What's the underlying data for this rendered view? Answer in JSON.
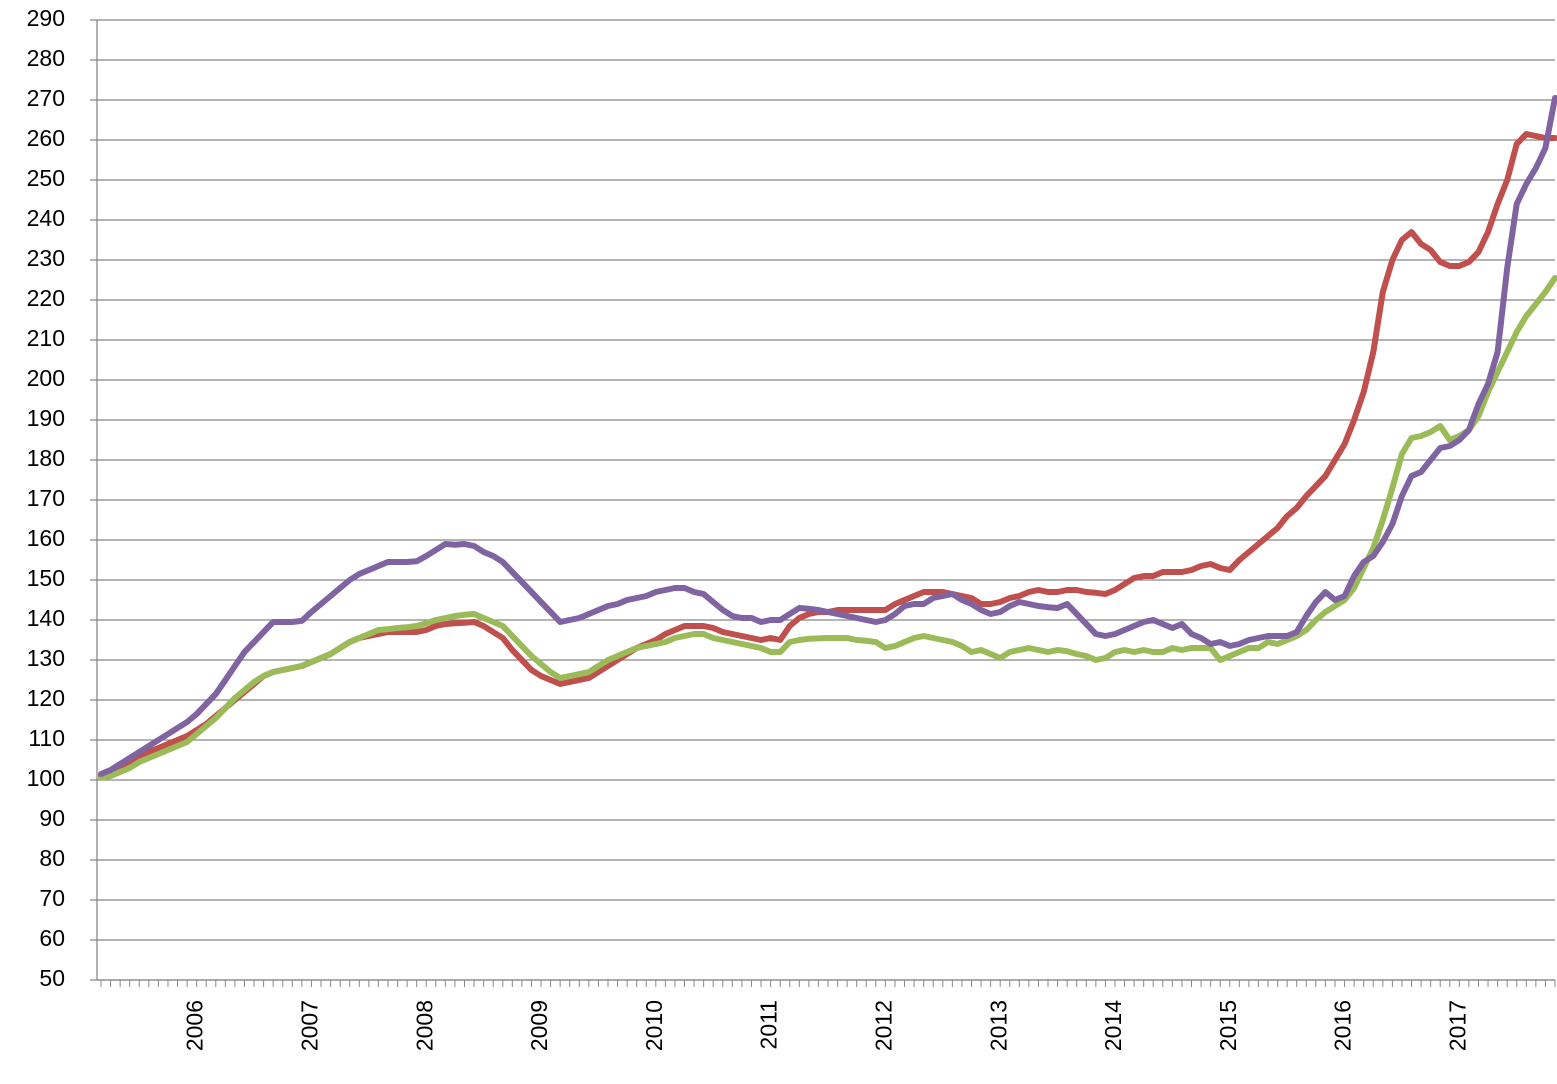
{
  "chart_data": {
    "type": "line",
    "categories": [
      null,
      null,
      null,
      null,
      null,
      null,
      null,
      null,
      null,
      null,
      "2006",
      null,
      null,
      null,
      null,
      null,
      null,
      null,
      null,
      null,
      null,
      null,
      "2007",
      null,
      null,
      null,
      null,
      null,
      null,
      null,
      null,
      null,
      null,
      null,
      "2008",
      null,
      null,
      null,
      null,
      null,
      null,
      null,
      null,
      null,
      null,
      null,
      "2009",
      null,
      null,
      null,
      null,
      null,
      null,
      null,
      null,
      null,
      null,
      null,
      "2010",
      null,
      null,
      null,
      null,
      null,
      null,
      null,
      null,
      null,
      null,
      null,
      "2011",
      null,
      null,
      null,
      null,
      null,
      null,
      null,
      null,
      null,
      null,
      null,
      "2012",
      null,
      null,
      null,
      null,
      null,
      null,
      null,
      null,
      null,
      null,
      null,
      "2013",
      null,
      null,
      null,
      null,
      null,
      null,
      null,
      null,
      null,
      null,
      null,
      "2014",
      null,
      null,
      null,
      null,
      null,
      null,
      null,
      null,
      null,
      null,
      null,
      "2015",
      null,
      null,
      null,
      null,
      null,
      null,
      null,
      null,
      null,
      null,
      null,
      "2016",
      null,
      null,
      null,
      null,
      null,
      null,
      null,
      null,
      null,
      null,
      null,
      "2017",
      null,
      null,
      null,
      null,
      null,
      null,
      null,
      null,
      null,
      null
    ],
    "series": [
      {
        "color": "#c0504d",
        "values": [
          101,
          102,
          103,
          104.5,
          106,
          107,
          108,
          109,
          110,
          111,
          112.5,
          114,
          116,
          118,
          120,
          122,
          124,
          126,
          127,
          127.5,
          128,
          128.5,
          129.5,
          130.5,
          131.5,
          133,
          134.5,
          135.5,
          136,
          136.5,
          137,
          137,
          137,
          137,
          137.5,
          138.5,
          139,
          139.2,
          139.3,
          139.5,
          138.5,
          137,
          135.5,
          132.5,
          130,
          127.5,
          126,
          125,
          124,
          124.5,
          125,
          125.5,
          127,
          128.5,
          130,
          131.5,
          133,
          134,
          135,
          136.5,
          137.5,
          138.5,
          138.5,
          138.5,
          138,
          137,
          136.5,
          136,
          135.5,
          135,
          135.5,
          135,
          138.5,
          140.5,
          141.5,
          142,
          142,
          142.5,
          142.5,
          142.5,
          142.5,
          142.5,
          142.5,
          144,
          145,
          146,
          147,
          147,
          147,
          146.5,
          146,
          145.5,
          144,
          144,
          144.5,
          145.5,
          146,
          147,
          147.5,
          147,
          147,
          147.5,
          147.5,
          147,
          146.8,
          146.5,
          147.5,
          149,
          150.5,
          151,
          151,
          152,
          152,
          152,
          152.5,
          153.5,
          154,
          153,
          152.5,
          155,
          157,
          159,
          161,
          163,
          166,
          168,
          171,
          173.5,
          176,
          180,
          184,
          190,
          197,
          207,
          222,
          230,
          235,
          237,
          234,
          232.5,
          229.5,
          228.5,
          228.5,
          229.5,
          232,
          237,
          244,
          250,
          259,
          261.5,
          261,
          260.5,
          260.5
        ]
      },
      {
        "color": "#9bbb59",
        "values": [
          100.5,
          101,
          102,
          103,
          104.5,
          105.5,
          106.5,
          107.5,
          108.5,
          109.5,
          111.5,
          113.5,
          115.5,
          118,
          120.5,
          122.5,
          124.5,
          126,
          127,
          127.5,
          128,
          128.5,
          129.5,
          130.5,
          131.5,
          133,
          134.5,
          135.5,
          136.5,
          137.5,
          137.7,
          138,
          138.2,
          138.5,
          139.2,
          140,
          140.5,
          141,
          141.3,
          141.5,
          140.5,
          139.5,
          138.5,
          136,
          133.5,
          131,
          129,
          127,
          125.5,
          126,
          126.5,
          127,
          128.5,
          130,
          131,
          132,
          133,
          133.5,
          134,
          134.5,
          135.5,
          136,
          136.5,
          136.5,
          135.5,
          135,
          134.5,
          134,
          133.5,
          133,
          132,
          132,
          134.5,
          135,
          135.3,
          135.4,
          135.5,
          135.5,
          135.5,
          135,
          134.8,
          134.5,
          133,
          133.5,
          134.5,
          135.5,
          136,
          135.5,
          135,
          134.5,
          133.5,
          132,
          132.5,
          131.5,
          130.5,
          132,
          132.5,
          133,
          132.5,
          132,
          132.5,
          132.2,
          131.5,
          131,
          130,
          130.5,
          132,
          132.5,
          132,
          132.5,
          132,
          132,
          133,
          132.5,
          133,
          133,
          133,
          130,
          131,
          132,
          133,
          133,
          134.5,
          134,
          135,
          136,
          137.5,
          140,
          142,
          143.5,
          145,
          148,
          153,
          158,
          165,
          173,
          181.5,
          185.5,
          186,
          187,
          188.5,
          185,
          186,
          187.5,
          191,
          197,
          202,
          207,
          212,
          216,
          219,
          222,
          225.5
        ]
      },
      {
        "color": "#8064a2",
        "values": [
          101.5,
          102.5,
          104,
          105.5,
          107,
          108.5,
          110,
          111.5,
          113,
          114.5,
          116.5,
          119,
          121.5,
          125,
          128.5,
          132,
          134.5,
          137,
          139.5,
          139.5,
          139.5,
          139.8,
          142,
          144,
          146,
          148,
          150,
          151.5,
          152.5,
          153.5,
          154.5,
          154.5,
          154.5,
          154.7,
          156,
          157.5,
          159,
          158.8,
          159,
          158.5,
          157,
          156,
          154.5,
          152,
          149.5,
          147,
          144.5,
          142,
          139.5,
          140,
          140.5,
          141.5,
          142.5,
          143.5,
          144,
          145,
          145.5,
          146,
          147,
          147.5,
          148,
          148,
          147,
          146.5,
          144.5,
          142.5,
          141,
          140.5,
          140.5,
          139.5,
          140,
          140,
          141.5,
          143,
          142.8,
          142.5,
          142,
          141.5,
          141,
          140.5,
          140,
          139.5,
          140,
          141.5,
          143.5,
          144,
          144,
          145.5,
          146,
          146.5,
          145,
          144,
          142.5,
          141.5,
          142,
          143.5,
          144.5,
          144,
          143.5,
          143.2,
          143,
          144,
          141.5,
          139,
          136.5,
          136,
          136.5,
          137.5,
          138.5,
          139.5,
          140,
          139,
          138,
          139,
          136.5,
          135.5,
          134,
          134.5,
          133.5,
          134,
          135,
          135.5,
          136,
          136,
          136,
          137,
          141,
          144.5,
          147,
          145,
          146,
          151,
          154.5,
          156,
          159.5,
          164,
          171,
          176,
          177,
          180,
          183,
          183.5,
          185,
          187.5,
          194,
          199,
          207,
          228,
          244,
          249,
          253,
          258,
          270.5
        ]
      }
    ],
    "ylim": [
      50,
      290
    ],
    "yticks": [
      50,
      60,
      70,
      80,
      90,
      100,
      110,
      120,
      130,
      140,
      150,
      160,
      170,
      180,
      190,
      200,
      210,
      220,
      230,
      240,
      250,
      260,
      270,
      280,
      290
    ],
    "grid": true
  }
}
